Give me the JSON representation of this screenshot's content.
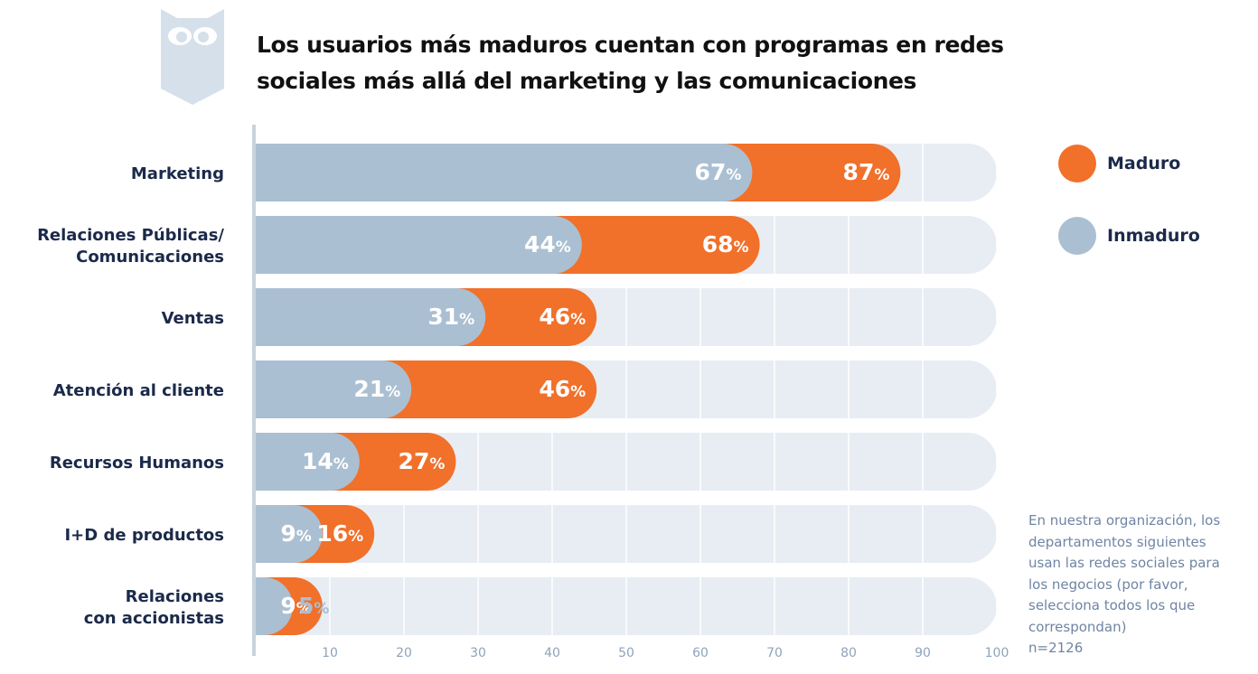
{
  "title": "Los usuarios más maduros cuentan con programas en redes sociales más allá del marketing y las comunicaciones",
  "legend": [
    {
      "label": "Maduro",
      "color": "#f1702a"
    },
    {
      "label": "Inmaduro",
      "color": "#aabfd2"
    }
  ],
  "note": "En nuestra organización, los departamentos siguientes usan las redes sociales para los negocios (por favor, selecciona todos los que correspondan)",
  "sample_size": "n=2126",
  "logo_icon": "owl-icon",
  "colors": {
    "track": "#e8edf3",
    "axis": "#c9d3de",
    "label": "#1b2a4a",
    "tick": "#8fa3bb"
  },
  "chart_data": {
    "type": "bar",
    "orientation": "horizontal",
    "categories": [
      [
        "Marketing"
      ],
      [
        "Relaciones Públicas/",
        "Comunicaciones"
      ],
      [
        "Ventas"
      ],
      [
        "Atención al cliente"
      ],
      [
        "Recursos Humanos"
      ],
      [
        "I+D de productos"
      ],
      [
        "Relaciones",
        "con accionistas"
      ]
    ],
    "series": [
      {
        "name": "Maduro",
        "values": [
          87,
          68,
          46,
          46,
          27,
          16,
          9
        ],
        "color": "#f1702a"
      },
      {
        "name": "Inmaduro",
        "values": [
          67,
          44,
          31,
          21,
          14,
          9,
          5
        ],
        "color": "#aabfd2"
      }
    ],
    "value_suffix": "%",
    "xlim": [
      0,
      100
    ],
    "xticks": [
      10,
      20,
      30,
      40,
      50,
      60,
      70,
      80,
      90,
      100
    ],
    "grid": true,
    "legend_position": "right"
  }
}
